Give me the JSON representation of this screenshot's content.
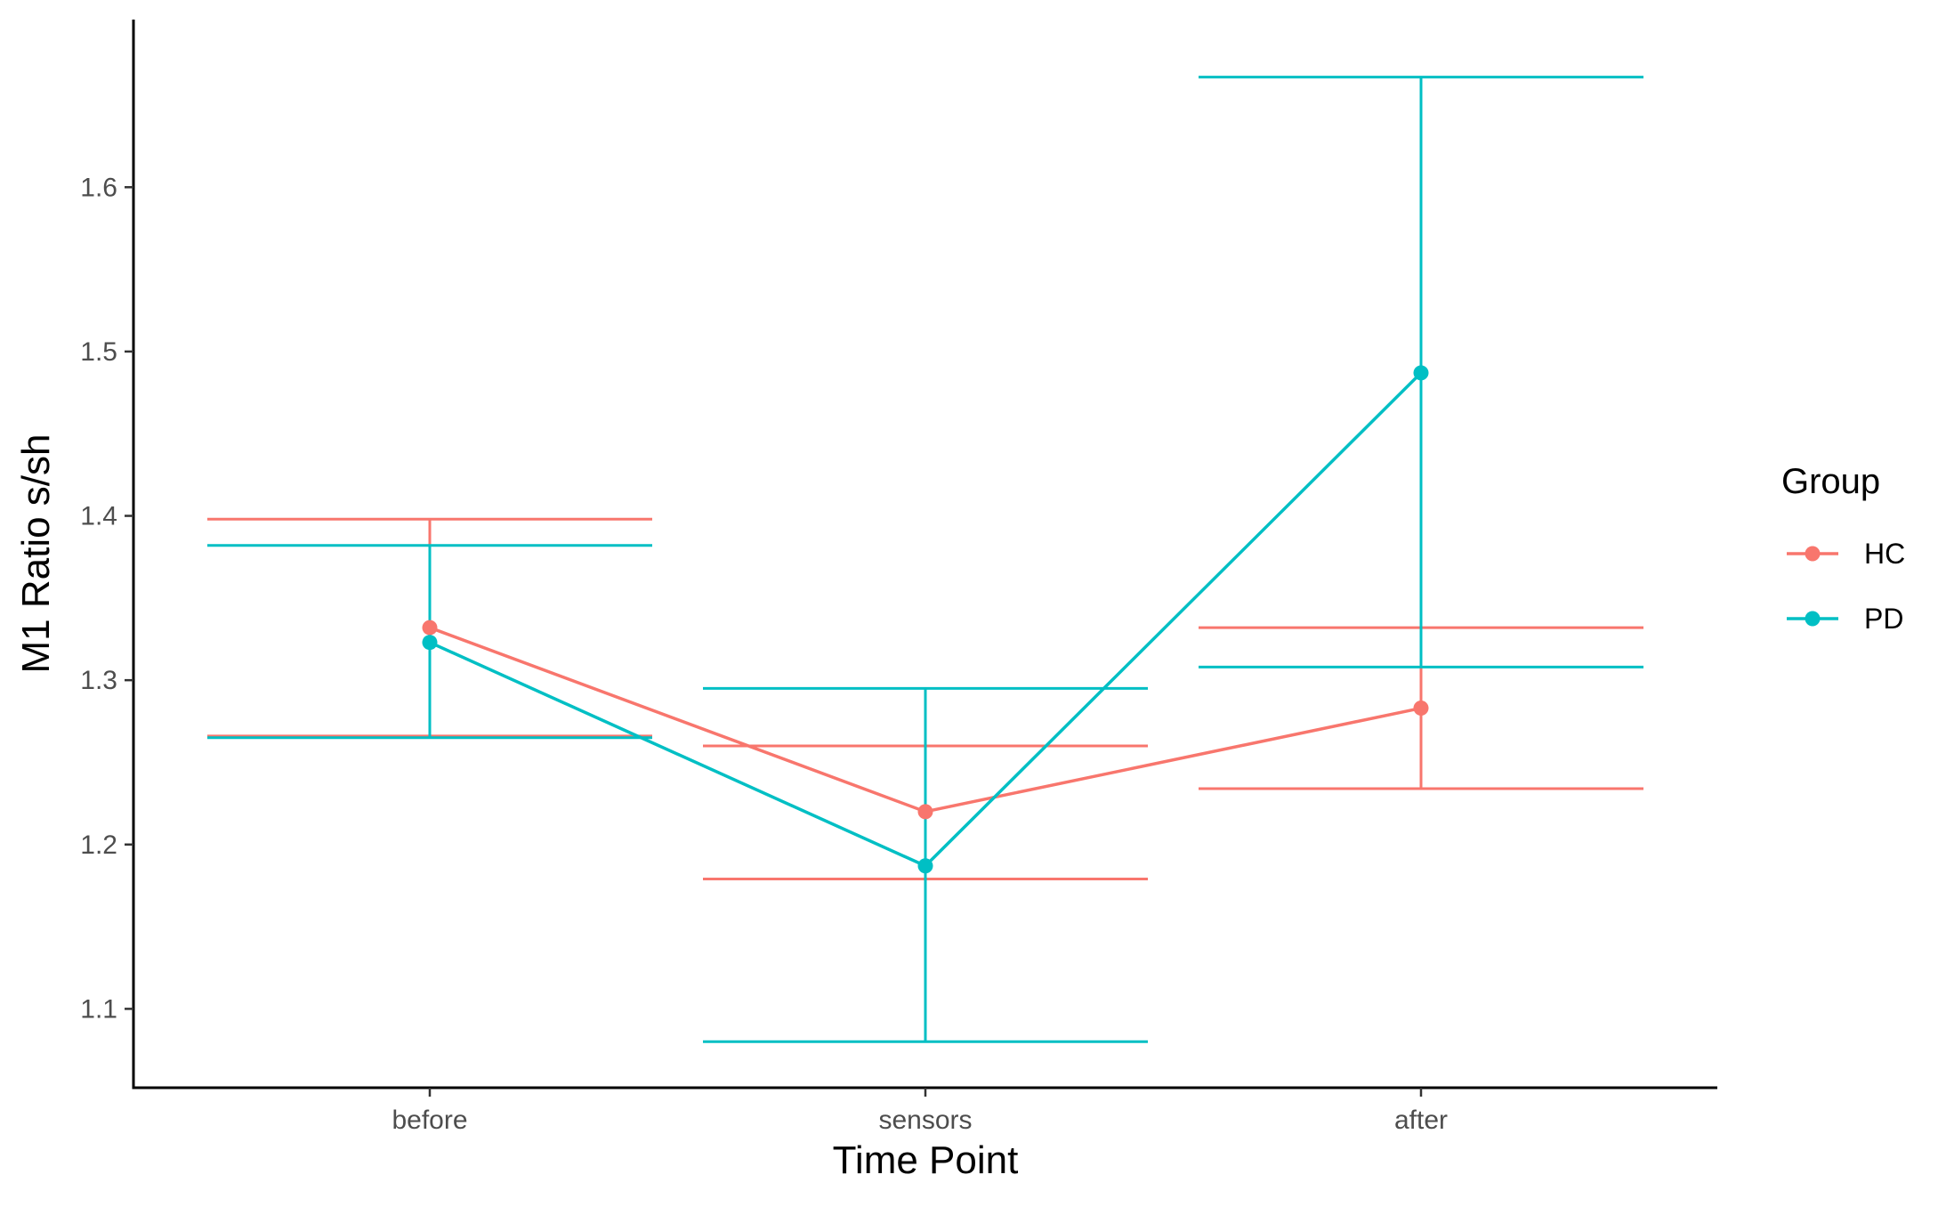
{
  "chart_data": {
    "type": "line",
    "xlabel": "Time Point",
    "ylabel": "M1 Ratio s/sh",
    "categories": [
      "before",
      "sensors",
      "after"
    ],
    "ylim": [
      1.052,
      1.702
    ],
    "yticks": [
      1.1,
      1.2,
      1.3,
      1.4,
      1.5,
      1.6
    ],
    "ytick_labels": [
      "1.1",
      "1.2",
      "1.3",
      "1.4",
      "1.5",
      "1.6"
    ],
    "grid": false,
    "error_bars": true,
    "legend": {
      "title": "Group",
      "position": "right"
    },
    "series": [
      {
        "name": "HC",
        "color": "#F8766D",
        "values": [
          1.332,
          1.22,
          1.283
        ],
        "lower": [
          1.266,
          1.179,
          1.234
        ],
        "upper": [
          1.398,
          1.26,
          1.332
        ]
      },
      {
        "name": "PD",
        "color": "#00BFC4",
        "values": [
          1.323,
          1.187,
          1.487
        ],
        "lower": [
          1.265,
          1.08,
          1.308
        ],
        "upper": [
          1.382,
          1.295,
          1.667
        ]
      }
    ]
  }
}
